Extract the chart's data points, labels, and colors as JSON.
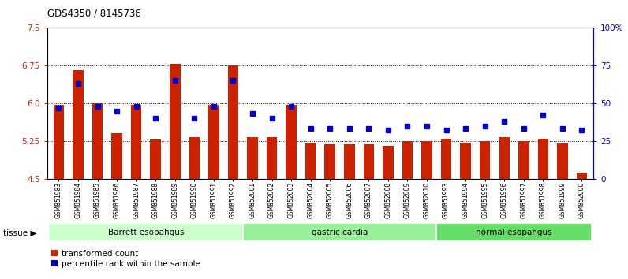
{
  "title": "GDS4350 / 8145736",
  "samples": [
    "GSM851983",
    "GSM851984",
    "GSM851985",
    "GSM851986",
    "GSM851987",
    "GSM851988",
    "GSM851989",
    "GSM851990",
    "GSM851991",
    "GSM851992",
    "GSM852001",
    "GSM852002",
    "GSM852003",
    "GSM852004",
    "GSM852005",
    "GSM852006",
    "GSM852007",
    "GSM852008",
    "GSM852009",
    "GSM852010",
    "GSM851993",
    "GSM851994",
    "GSM851995",
    "GSM851996",
    "GSM851997",
    "GSM851998",
    "GSM851999",
    "GSM852000"
  ],
  "bar_values": [
    5.97,
    6.66,
    6.0,
    5.4,
    5.97,
    5.28,
    6.78,
    5.32,
    5.97,
    6.75,
    5.32,
    5.32,
    5.97,
    5.22,
    5.18,
    5.18,
    5.18,
    5.15,
    5.25,
    5.25,
    5.3,
    5.22,
    5.25,
    5.32,
    5.25,
    5.3,
    5.2,
    4.62
  ],
  "percentile_values": [
    47,
    63,
    48,
    45,
    48,
    40,
    65,
    40,
    48,
    65,
    43,
    40,
    48,
    33,
    33,
    33,
    33,
    32,
    35,
    35,
    32,
    33,
    35,
    38,
    33,
    42,
    33,
    32
  ],
  "groups": [
    {
      "label": "Barrett esopahgus",
      "start": 0,
      "end": 10,
      "color": "#ccffcc"
    },
    {
      "label": "gastric cardia",
      "start": 10,
      "end": 20,
      "color": "#99ee99"
    },
    {
      "label": "normal esopahgus",
      "start": 20,
      "end": 28,
      "color": "#66dd66"
    }
  ],
  "bar_color": "#cc2200",
  "percentile_color": "#0000cc",
  "ylim_left": [
    4.5,
    7.5
  ],
  "ylim_right": [
    0,
    100
  ],
  "yticks_left": [
    4.5,
    5.25,
    6.0,
    6.75,
    7.5
  ],
  "yticks_right": [
    0,
    25,
    50,
    75,
    100
  ],
  "ylabel_right_labels": [
    "0",
    "25",
    "50",
    "75",
    "100%"
  ],
  "grid_values": [
    5.25,
    6.0,
    6.75
  ],
  "background_color": "#ffffff"
}
